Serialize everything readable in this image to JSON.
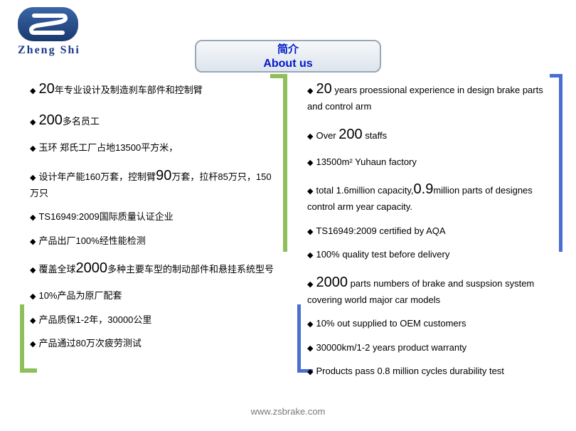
{
  "logo": {
    "brand": "Zheng Shi",
    "bg_gradient_top": "#3a65a8",
    "bg_gradient_bottom": "#1a3a6e",
    "s_color": "#ffffff"
  },
  "title": {
    "cn": "简介",
    "en": "About us",
    "text_color": "#0018c8",
    "border_color": "#9aa7b8",
    "bg_top": "#f6f8fa",
    "bg_bottom": "#dde4ec"
  },
  "brackets": {
    "green": "#8fbf5a",
    "blue": "#4a6fd0"
  },
  "left": [
    {
      "parts": [
        {
          "t": "◆ ",
          "cls": "diamond"
        },
        {
          "t": "20",
          "cls": "big"
        },
        {
          "t": "年专业设计及制造刹车部件和控制臂"
        }
      ]
    },
    {
      "parts": [
        {
          "t": "◆ ",
          "cls": "diamond"
        },
        {
          "t": "200",
          "cls": "big"
        },
        {
          "t": "多名员工"
        }
      ]
    },
    {
      "parts": [
        {
          "t": "◆",
          "cls": "diamond"
        },
        {
          "t": "玉环 郑氏工厂占地13500平方米，"
        }
      ]
    },
    {
      "parts": [
        {
          "t": "◆ ",
          "cls": "diamond"
        },
        {
          "t": "设计年产能160万套，控制臂"
        },
        {
          "t": "90",
          "cls": "big"
        },
        {
          "t": "万套，拉杆85万只，150万只"
        }
      ]
    },
    {
      "parts": [
        {
          "t": "◆ ",
          "cls": "diamond"
        },
        {
          "t": "TS16949:2009国际质量认证企业"
        }
      ]
    },
    {
      "parts": [
        {
          "t": "◆ ",
          "cls": "diamond"
        },
        {
          "t": "产品出厂100%经性能检测"
        }
      ]
    },
    {
      "parts": [
        {
          "t": "◆ ",
          "cls": "diamond"
        },
        {
          "t": "覆盖全球"
        },
        {
          "t": "2000",
          "cls": "big"
        },
        {
          "t": "多种主要车型的制动部件和悬挂系统型号"
        }
      ]
    },
    {
      "parts": [
        {
          "t": "◆ ",
          "cls": "diamond"
        },
        {
          "t": "10%产品为原厂配套"
        }
      ]
    },
    {
      "parts": [
        {
          "t": "◆ ",
          "cls": "diamond"
        },
        {
          "t": "产品质保1-2年，30000公里"
        }
      ]
    },
    {
      "parts": [
        {
          "t": "◆ ",
          "cls": "diamond"
        },
        {
          "t": "产品通过80万次疲劳测试"
        }
      ]
    }
  ],
  "right": [
    {
      "parts": [
        {
          "t": "◆ ",
          "cls": "diamond"
        },
        {
          "t": "20",
          "cls": "big"
        },
        {
          "t": " years proessional experience in design brake parts and  control arm"
        }
      ]
    },
    {
      "parts": [
        {
          "t": "◆ ",
          "cls": "diamond"
        },
        {
          "t": "Over "
        },
        {
          "t": "200",
          "cls": "big"
        },
        {
          "t": " staffs"
        }
      ]
    },
    {
      "parts": [
        {
          "t": "◆ ",
          "cls": "diamond"
        },
        {
          "t": "13500m² Yuhaun factory"
        }
      ]
    },
    {
      "parts": [
        {
          "t": "◆ ",
          "cls": "diamond"
        },
        {
          "t": "total 1.6million capacity,"
        },
        {
          "t": "0.9",
          "cls": "big"
        },
        {
          "t": "million parts of designes control arm year capacity."
        }
      ]
    },
    {
      "parts": [
        {
          "t": "◆ ",
          "cls": "diamond"
        },
        {
          "t": "TS16949:2009 certified by AQA"
        }
      ]
    },
    {
      "parts": [
        {
          "t": "◆ ",
          "cls": "diamond"
        },
        {
          "t": "100% quality test before delivery"
        }
      ]
    },
    {
      "parts": [
        {
          "t": "◆ ",
          "cls": "diamond"
        },
        {
          "t": "2000",
          "cls": "big"
        },
        {
          "t": " parts numbers of brake and suspsion system covering world major car models"
        }
      ]
    },
    {
      "parts": [
        {
          "t": "◆ ",
          "cls": "diamond"
        },
        {
          "t": "10% out supplied to OEM customers"
        }
      ]
    },
    {
      "parts": [
        {
          "t": "◆ ",
          "cls": "diamond"
        },
        {
          "t": "30000km/1-2 years product warranty"
        }
      ]
    },
    {
      "parts": [
        {
          "t": "◆ ",
          "cls": "diamond"
        },
        {
          "t": "Products pass 0.8 million cycles durability test"
        }
      ]
    }
  ],
  "footer": "www.zsbrake.com"
}
